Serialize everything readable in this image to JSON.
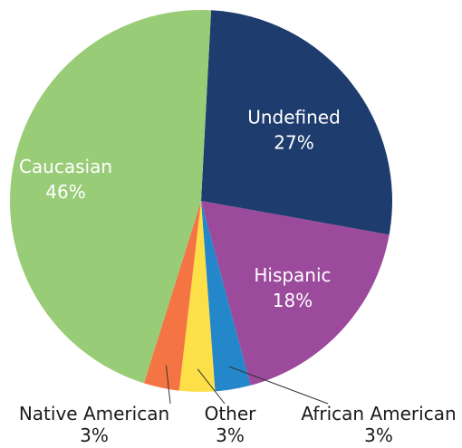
{
  "chart_data": {
    "type": "pie",
    "title": "",
    "slices": [
      {
        "label": "Undefined",
        "value": 27,
        "value_label": "27%",
        "color": "#1e3d6e"
      },
      {
        "label": "Hispanic",
        "value": 18,
        "value_label": "18%",
        "color": "#9b4a9c"
      },
      {
        "label": "African American",
        "value": 3,
        "value_label": "3%",
        "color": "#2387c9"
      },
      {
        "label": "Other",
        "value": 3,
        "value_label": "3%",
        "color": "#fde047"
      },
      {
        "label": "Native American",
        "value": 3,
        "value_label": "3%",
        "color": "#f47444"
      },
      {
        "label": "Caucasian",
        "value": 46,
        "value_label": "46%",
        "color": "#99cc77"
      }
    ],
    "label_text_color_inside": "#ffffff",
    "label_text_color_outside": "#1a1a1a"
  }
}
